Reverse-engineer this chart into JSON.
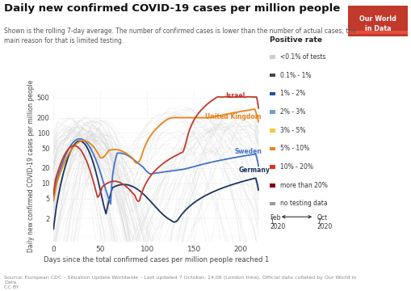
{
  "title": "Daily new confirmed COVID-19 cases per million people",
  "subtitle": "Shown is the rolling 7-day average. The number of confirmed cases is lower than the number of actual cases; the\nmain reason for that is limited testing.",
  "xlabel": "Days since the total confirmed cases per million people reached 1",
  "ylabel": "Daily new confirmed COVID-19 cases per million people",
  "source": "Source: European CDC – Situation Update Worldwide – Last updated 7 October, 14:06 (London time), Official data collated by Our World in\nData\nCC BY",
  "xlim": [
    0,
    220
  ],
  "ylim_log": [
    0.7,
    700
  ],
  "yticks": [
    2,
    5,
    10,
    20,
    50,
    100,
    200,
    500
  ],
  "xticks": [
    0,
    50,
    100,
    150,
    200
  ],
  "legend_title": "Positive rate",
  "legend_items": [
    {
      "label": "<0.1% of tests",
      "color": "#cccccc"
    },
    {
      "label": "0.1% - 1%",
      "color": "#444444"
    },
    {
      "label": "1% - 2%",
      "color": "#2a4d9e"
    },
    {
      "label": "2% - 3%",
      "color": "#6b9fd4"
    },
    {
      "label": "3% - 5%",
      "color": "#f5c842"
    },
    {
      "label": "5% - 10%",
      "color": "#e8831a"
    },
    {
      "label": "10% - 20%",
      "color": "#e03020"
    },
    {
      "label": "more than 20%",
      "color": "#8b0000"
    },
    {
      "label": "no testing data",
      "color": "#999999"
    }
  ],
  "background_color": "#ffffff",
  "grid_color": "#e0e0e0",
  "owid_bg": "#c0392b",
  "germany_color": "#1c3461",
  "sweden_color": "#4472c4",
  "uk_color": "#e8831a",
  "israel_color": "#c0392b"
}
